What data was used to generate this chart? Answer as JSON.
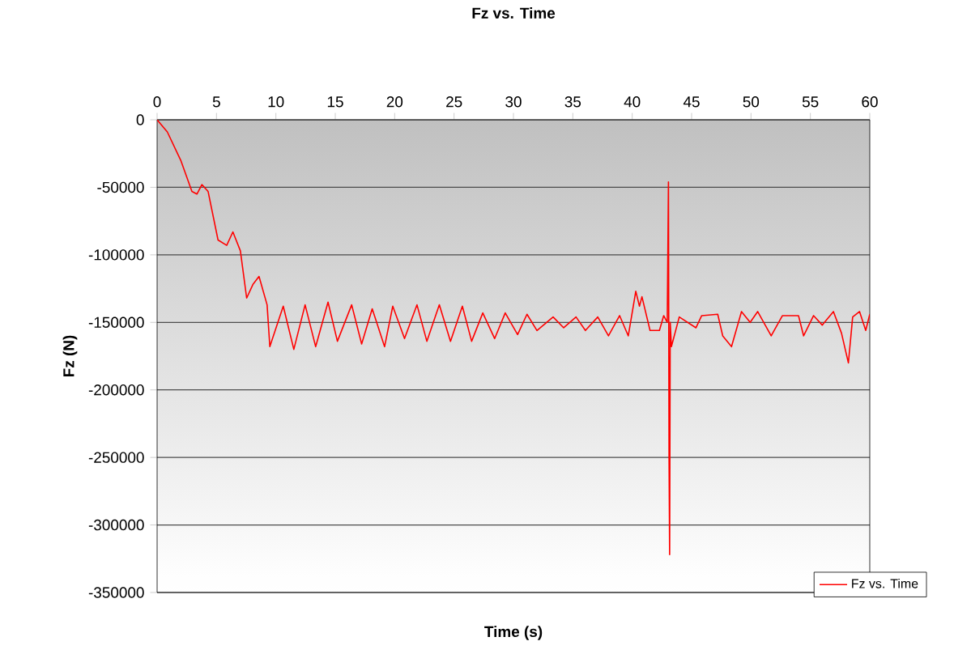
{
  "chart_data": {
    "type": "line",
    "title": "Fz vs. Time",
    "xlabel": "Time (s)",
    "ylabel": "Fz (N)",
    "xlim": [
      0,
      60
    ],
    "xticks": [
      0,
      5,
      10,
      15,
      20,
      25,
      30,
      35,
      40,
      45,
      50,
      55,
      60
    ],
    "ylim": [
      -350000,
      0
    ],
    "yticks": [
      -350000,
      -300000,
      -250000,
      -200000,
      -150000,
      -100000,
      -50000,
      0
    ],
    "grid": "y",
    "legend": "bottom right",
    "marker": "none",
    "line_style": "solid",
    "series": [
      {
        "name": "Fz vs. Time",
        "color": "#ff0000",
        "x": [
          0,
          0.86,
          1.99,
          2.93,
          3.35,
          3.77,
          4.29,
          5.13,
          5.86,
          6.38,
          7.01,
          7.54,
          8.06,
          8.58,
          9.26,
          9.49,
          10.62,
          11.51,
          12.46,
          13.35,
          14.39,
          15.18,
          16.38,
          17.22,
          18.11,
          19.15,
          19.84,
          20.83,
          21.88,
          22.71,
          23.76,
          24.7,
          25.7,
          26.48,
          27.42,
          28.42,
          29.31,
          30.35,
          31.14,
          31.98,
          33.34,
          34.23,
          35.27,
          36.06,
          37.1,
          38.0,
          38.94,
          39.67,
          40.3,
          40.61,
          40.82,
          41.5,
          42.29,
          42.65,
          42.95,
          43.05,
          43.1,
          43.15,
          43.2,
          43.3,
          43.96,
          45.37,
          45.85,
          47.2,
          47.62,
          48.36,
          49.2,
          49.93,
          50.56,
          51.7,
          52.65,
          54.0,
          54.43,
          55.27,
          56.0,
          56.94,
          57.62,
          58.2,
          58.56,
          59.14,
          59.66,
          60
        ],
        "values": [
          0,
          -9000,
          -30000,
          -53000,
          -55000,
          -48000,
          -53000,
          -89000,
          -93000,
          -83000,
          -97000,
          -132000,
          -122000,
          -116000,
          -137000,
          -168000,
          -138000,
          -170000,
          -137000,
          -168000,
          -135000,
          -164000,
          -137000,
          -166000,
          -140000,
          -168000,
          -138000,
          -162000,
          -137000,
          -164000,
          -137000,
          -164000,
          -138000,
          -164000,
          -143000,
          -162000,
          -143000,
          -159000,
          -144000,
          -156000,
          -146000,
          -154000,
          -146000,
          -156000,
          -146000,
          -160000,
          -145000,
          -160000,
          -127000,
          -138000,
          -131000,
          -156000,
          -156000,
          -145000,
          -150000,
          -46000,
          -250000,
          -322000,
          -150000,
          -168000,
          -146000,
          -154000,
          -145000,
          -144000,
          -160000,
          -168000,
          -142000,
          -150000,
          -142000,
          -160000,
          -145000,
          -145000,
          -160000,
          -145000,
          -152000,
          -142000,
          -158000,
          -180000,
          -146000,
          -142000,
          -156000,
          -144000
        ]
      }
    ]
  }
}
